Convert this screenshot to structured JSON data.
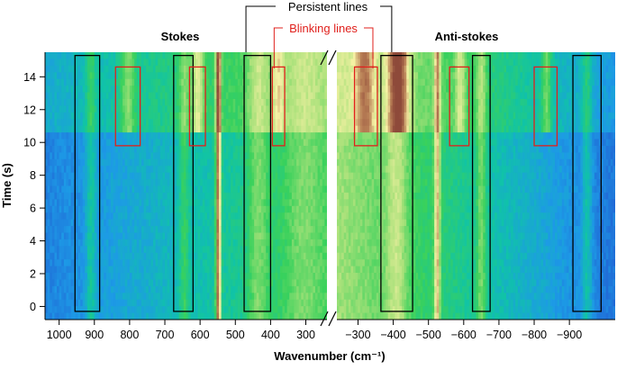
{
  "chart_data": {
    "type": "heatmap",
    "xlabel": "Wavenumber (cm⁻¹)",
    "ylabel": "Time (s)",
    "ylim": [
      -0.8,
      15.5
    ],
    "y_ticks": [
      0,
      2,
      4,
      6,
      8,
      10,
      12,
      14
    ],
    "x_axis_break": true,
    "panels": [
      {
        "name": "Stokes",
        "x_range": [
          1040,
          240
        ],
        "x_ticks": [
          1000,
          900,
          800,
          700,
          600,
          500,
          400,
          300
        ]
      },
      {
        "name": "Anti-stokes",
        "x_range": [
          -240,
          -1030
        ],
        "x_ticks": [
          -300,
          -400,
          -500,
          -600,
          -700,
          -800,
          -900
        ],
        "x_tick_labels": [
          "−300",
          "−400",
          "−500",
          "−600",
          "−700",
          "−800",
          "−900"
        ]
      }
    ],
    "legend": {
      "persistent_label": "Persistent lines",
      "blinking_label": "Blinking lines",
      "persistent_color": "#000000",
      "blinking_color": "#e0201c"
    },
    "persistent_boxes": [
      {
        "x0": 955,
        "x1": 885,
        "t0": -0.3,
        "t1": 15.3
      },
      {
        "x0": 675,
        "x1": 620,
        "t0": -0.3,
        "t1": 15.3
      },
      {
        "x0": 475,
        "x1": 400,
        "t0": -0.3,
        "t1": 15.3
      },
      {
        "x0": -365,
        "x1": -455,
        "t0": -0.3,
        "t1": 15.3
      },
      {
        "x0": -625,
        "x1": -675,
        "t0": -0.3,
        "t1": 15.3
      },
      {
        "x0": -910,
        "x1": -990,
        "t0": -0.3,
        "t1": 15.3
      }
    ],
    "blinking_boxes": [
      {
        "x0": 840,
        "x1": 770,
        "t0": 9.8,
        "t1": 14.6
      },
      {
        "x0": 630,
        "x1": 585,
        "t0": 9.8,
        "t1": 14.6
      },
      {
        "x0": 395,
        "x1": 360,
        "t0": 9.8,
        "t1": 14.6
      },
      {
        "x0": -290,
        "x1": -355,
        "t0": 9.8,
        "t1": 14.6
      },
      {
        "x0": -560,
        "x1": -615,
        "t0": 9.8,
        "t1": 14.6
      },
      {
        "x0": -800,
        "x1": -865,
        "t0": 9.8,
        "t1": 14.6
      }
    ],
    "intensity_colormap": [
      "#1c2fae",
      "#2160d3",
      "#1d9ae6",
      "#10c3a8",
      "#39d15c",
      "#a9e17a",
      "#f6f1a4",
      "#b87e55",
      "#8e4a3a"
    ]
  }
}
